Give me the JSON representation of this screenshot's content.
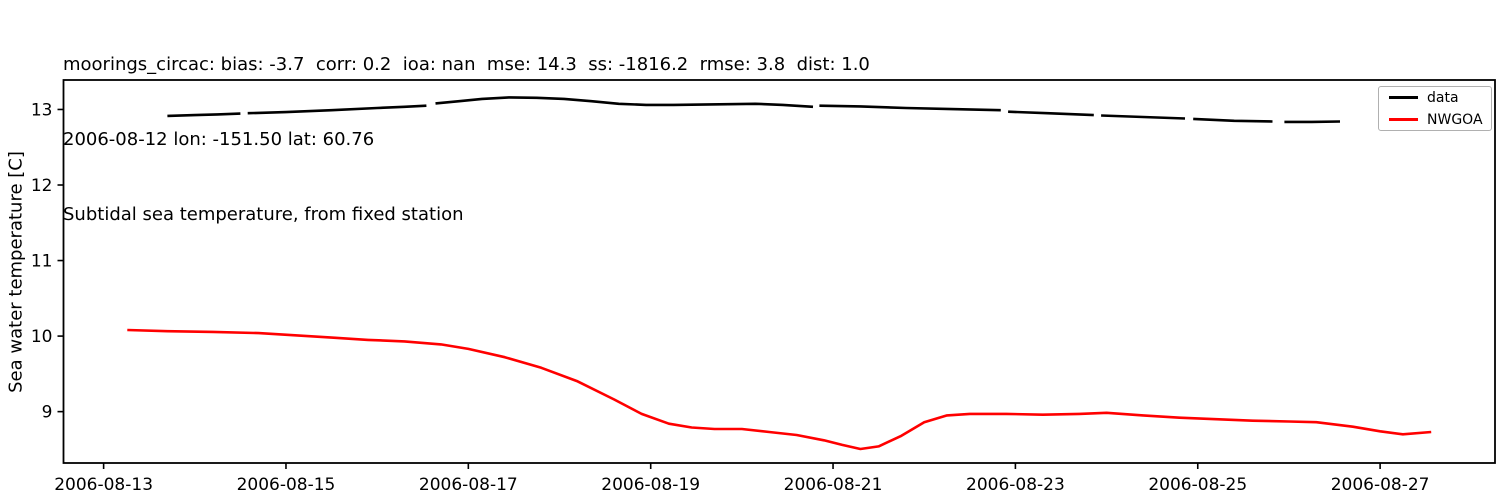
{
  "chart_data": {
    "type": "line",
    "title_lines": [
      "moorings_circac: bias: -3.7  corr: 0.2  ioa: nan  mse: 14.3  ss: -1816.2  rmse: 3.8  dist: 1.0",
      "2006-08-12 lon: -151.50 lat: 60.76",
      "Subtidal sea temperature, from fixed station"
    ],
    "xlabel": "",
    "ylabel": "Sea water temperature [C]",
    "grid": false,
    "xlim_days_of_aug_2006": [
      12.56,
      28.26
    ],
    "ylim": [
      8.32,
      13.39
    ],
    "x_tick_days": [
      13,
      15,
      17,
      19,
      21,
      23,
      25,
      27
    ],
    "x_tick_labels": [
      "2006-08-13",
      "2006-08-15",
      "2006-08-17",
      "2006-08-19",
      "2006-08-21",
      "2006-08-23",
      "2006-08-25",
      "2006-08-27"
    ],
    "y_tick_values": [
      9,
      10,
      11,
      12,
      13
    ],
    "y_tick_labels": [
      "9",
      "10",
      "11",
      "12",
      "13"
    ],
    "legend": {
      "position": "upper right",
      "entries": [
        {
          "label": "data",
          "color": "#000000"
        },
        {
          "label": "NWGOA",
          "color": "#ff0000"
        }
      ]
    },
    "series": [
      {
        "name": "data",
        "color": "#000000",
        "line_width": 2.6,
        "segments": [
          [
            [
              13.7,
              12.915
            ],
            [
              14.0,
              12.925
            ],
            [
              14.25,
              12.935
            ],
            [
              14.5,
              12.945
            ]
          ],
          [
            [
              14.58,
              12.95
            ],
            [
              15.0,
              12.965
            ],
            [
              15.5,
              12.99
            ],
            [
              16.0,
              13.02
            ],
            [
              16.3,
              13.035
            ],
            [
              16.54,
              13.05
            ]
          ],
          [
            [
              16.64,
              13.08
            ],
            [
              16.9,
              13.11
            ],
            [
              17.15,
              13.14
            ],
            [
              17.45,
              13.16
            ],
            [
              17.75,
              13.155
            ],
            [
              18.05,
              13.14
            ],
            [
              18.35,
              13.11
            ],
            [
              18.65,
              13.075
            ],
            [
              18.95,
              13.06
            ],
            [
              19.25,
              13.06
            ],
            [
              19.55,
              13.065
            ],
            [
              19.85,
              13.07
            ],
            [
              20.15,
              13.075
            ],
            [
              20.45,
              13.06
            ],
            [
              20.78,
              13.035
            ]
          ],
          [
            [
              20.85,
              13.05
            ],
            [
              21.3,
              13.04
            ],
            [
              21.8,
              13.02
            ],
            [
              22.3,
              13.005
            ],
            [
              22.84,
              12.99
            ]
          ],
          [
            [
              22.92,
              12.97
            ],
            [
              23.35,
              12.95
            ],
            [
              23.86,
              12.925
            ]
          ],
          [
            [
              23.94,
              12.92
            ],
            [
              24.4,
              12.9
            ],
            [
              24.86,
              12.88
            ]
          ],
          [
            [
              24.95,
              12.875
            ],
            [
              25.4,
              12.85
            ],
            [
              25.82,
              12.84
            ]
          ],
          [
            [
              25.95,
              12.835
            ],
            [
              26.25,
              12.835
            ],
            [
              26.56,
              12.84
            ]
          ]
        ]
      },
      {
        "name": "NWGOA",
        "color": "#ff0000",
        "line_width": 2.6,
        "segments": [
          [
            [
              13.26,
              10.08
            ],
            [
              13.7,
              10.065
            ],
            [
              14.2,
              10.055
            ],
            [
              14.7,
              10.04
            ],
            [
              15.1,
              10.01
            ],
            [
              15.5,
              9.98
            ],
            [
              15.9,
              9.95
            ],
            [
              16.3,
              9.93
            ],
            [
              16.7,
              9.89
            ],
            [
              17.0,
              9.83
            ],
            [
              17.4,
              9.72
            ],
            [
              17.8,
              9.58
            ],
            [
              18.2,
              9.4
            ],
            [
              18.6,
              9.16
            ],
            [
              18.9,
              8.97
            ],
            [
              19.2,
              8.84
            ],
            [
              19.45,
              8.79
            ],
            [
              19.7,
              8.77
            ],
            [
              20.0,
              8.77
            ],
            [
              20.3,
              8.73
            ],
            [
              20.6,
              8.69
            ],
            [
              20.9,
              8.62
            ],
            [
              21.1,
              8.56
            ],
            [
              21.3,
              8.505
            ],
            [
              21.5,
              8.54
            ],
            [
              21.75,
              8.68
            ],
            [
              22.0,
              8.86
            ],
            [
              22.25,
              8.95
            ],
            [
              22.5,
              8.97
            ],
            [
              22.9,
              8.97
            ],
            [
              23.3,
              8.96
            ],
            [
              23.7,
              8.97
            ],
            [
              24.0,
              8.985
            ],
            [
              24.4,
              8.95
            ],
            [
              24.8,
              8.92
            ],
            [
              25.2,
              8.9
            ],
            [
              25.6,
              8.88
            ],
            [
              26.0,
              8.87
            ],
            [
              26.3,
              8.86
            ],
            [
              26.7,
              8.8
            ],
            [
              27.0,
              8.74
            ],
            [
              27.25,
              8.7
            ],
            [
              27.56,
              8.73
            ]
          ]
        ]
      }
    ]
  },
  "colors": {
    "background": "#ffffff",
    "axis": "#000000",
    "series_data": "#000000",
    "series_nwgoa": "#ff0000",
    "legend_border": "#b0b0b0"
  }
}
